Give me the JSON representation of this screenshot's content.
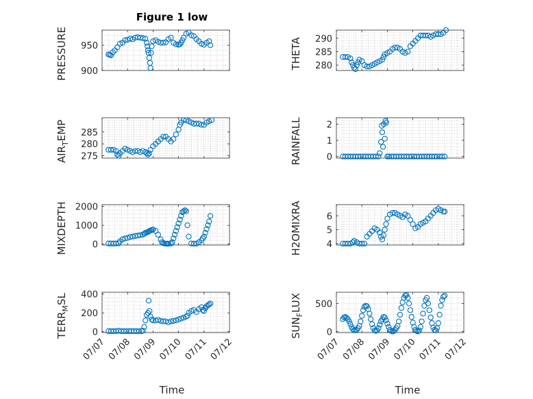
{
  "figure": {
    "title": "Figure 1 low",
    "xlabel": "Time",
    "x_ticks": [
      "07/07",
      "07/08",
      "07/09",
      "07/10",
      "07/11",
      "07/12"
    ],
    "marker_color": "#0072bd",
    "marker": "circle"
  },
  "chart_data": [
    {
      "type": "scatter",
      "ylabel": "PRESSURE",
      "title": "Figure 1 low",
      "xlim": [
        "07/07",
        "07/12"
      ],
      "ylim": [
        900,
        980
      ],
      "yticks": [
        900,
        950
      ],
      "grid": true,
      "x": [
        7.25,
        7.3,
        7.35,
        7.42,
        7.5,
        7.6,
        7.7,
        7.8,
        7.9,
        8.0,
        8.1,
        8.2,
        8.3,
        8.4,
        8.5,
        8.6,
        8.7,
        8.75,
        8.78,
        8.8,
        8.82,
        8.85,
        8.88,
        8.9,
        8.92,
        8.95,
        9.0,
        9.1,
        9.2,
        9.3,
        9.4,
        9.5,
        9.6,
        9.7,
        9.8,
        9.9,
        10.0,
        10.05,
        10.1,
        10.15,
        10.2,
        10.3,
        10.4,
        10.5,
        10.6,
        10.7,
        10.8,
        10.9,
        11.0,
        11.1,
        11.2,
        11.25
      ],
      "y": [
        932,
        931,
        930,
        936,
        940,
        946,
        953,
        955,
        960,
        961,
        963,
        962,
        965,
        966,
        965,
        964,
        963,
        955,
        948,
        940,
        935,
        925,
        915,
        905,
        935,
        948,
        958,
        960,
        957,
        955,
        955,
        956,
        962,
        965,
        955,
        952,
        951,
        952,
        955,
        960,
        965,
        973,
        975,
        970,
        968,
        962,
        958,
        953,
        951,
        955,
        958,
        950
      ]
    },
    {
      "type": "scatter",
      "ylabel": "THETA",
      "xlim": [
        "07/07",
        "07/12"
      ],
      "ylim": [
        278,
        293
      ],
      "yticks": [
        280,
        285,
        290
      ],
      "grid": true,
      "x": [
        7.25,
        7.35,
        7.45,
        7.55,
        7.6,
        7.65,
        7.7,
        7.75,
        7.8,
        7.85,
        7.9,
        8.0,
        8.1,
        8.2,
        8.3,
        8.4,
        8.5,
        8.6,
        8.7,
        8.8,
        8.85,
        8.9,
        9.0,
        9.1,
        9.2,
        9.3,
        9.4,
        9.5,
        9.6,
        9.7,
        9.8,
        9.9,
        10.0,
        10.1,
        10.2,
        10.3,
        10.4,
        10.5,
        10.6,
        10.7,
        10.8,
        10.9,
        11.0,
        11.1,
        11.2,
        11.3
      ],
      "y": [
        283,
        283,
        283,
        282.5,
        281,
        280,
        279,
        278.5,
        280,
        281,
        282,
        281.5,
        280,
        279.5,
        279.5,
        280,
        280.5,
        281,
        281.5,
        282,
        283,
        284,
        284.5,
        285,
        286,
        286.5,
        286.5,
        286,
        285,
        284.5,
        285,
        287,
        288,
        289,
        290,
        291,
        291,
        291,
        291,
        290.5,
        291,
        291.5,
        291.5,
        291.5,
        292,
        293
      ]
    },
    {
      "type": "scatter",
      "ylabel": "AIR_TEMP",
      "xlim": [
        "07/07",
        "07/12"
      ],
      "ylim": [
        274,
        291
      ],
      "yticks": [
        275,
        280,
        285
      ],
      "grid": true,
      "x": [
        7.25,
        7.35,
        7.45,
        7.55,
        7.6,
        7.65,
        7.7,
        7.8,
        7.9,
        8.0,
        8.1,
        8.2,
        8.3,
        8.4,
        8.5,
        8.6,
        8.7,
        8.75,
        8.8,
        8.85,
        8.9,
        9.0,
        9.1,
        9.2,
        9.3,
        9.4,
        9.5,
        9.6,
        9.7,
        9.8,
        9.9,
        10.0,
        10.05,
        10.1,
        10.2,
        10.3,
        10.4,
        10.5,
        10.6,
        10.7,
        10.8,
        10.9,
        11.0,
        11.1,
        11.2,
        11.3
      ],
      "y": [
        277.5,
        277.5,
        277.5,
        277,
        275.5,
        275,
        276,
        277,
        278,
        277.5,
        277,
        276.5,
        277,
        277,
        276.5,
        277,
        276.5,
        276,
        275.5,
        276,
        277.5,
        279,
        280,
        281,
        282,
        283,
        283,
        282,
        281,
        282,
        284,
        286,
        288,
        289,
        290,
        290,
        289.5,
        289,
        288.5,
        288.5,
        288.5,
        288,
        288,
        289,
        289.5,
        290
      ]
    },
    {
      "type": "scatter",
      "ylabel": "RAINFALL",
      "xlim": [
        "07/07",
        "07/12"
      ],
      "ylim": [
        -0.1,
        2.4
      ],
      "yticks": [
        0,
        1,
        2
      ],
      "grid": true,
      "x": [
        7.25,
        7.35,
        7.45,
        7.55,
        7.65,
        7.75,
        7.85,
        7.95,
        8.05,
        8.15,
        8.25,
        8.35,
        8.45,
        8.55,
        8.65,
        8.7,
        8.75,
        8.78,
        8.8,
        8.83,
        8.86,
        8.9,
        8.93,
        8.96,
        9.0,
        9.05,
        9.15,
        9.25,
        9.35,
        9.45,
        9.55,
        9.65,
        9.75,
        9.85,
        9.95,
        10.05,
        10.15,
        10.25,
        10.35,
        10.45,
        10.55,
        10.65,
        10.75,
        10.85,
        10.95,
        11.05,
        11.15,
        11.25
      ],
      "y": [
        0,
        0,
        0,
        0,
        0,
        0,
        0,
        0,
        0,
        0,
        0,
        0,
        0,
        0,
        0,
        0.2,
        0.9,
        1.9,
        1.5,
        0.6,
        2.0,
        1.1,
        2.2,
        2.1,
        0,
        0,
        0,
        0,
        0,
        0,
        0,
        0,
        0,
        0,
        0,
        0,
        0,
        0,
        0,
        0,
        0,
        0,
        0,
        0,
        0,
        0,
        0,
        0
      ]
    },
    {
      "type": "scatter",
      "ylabel": "MIXDEPTH",
      "xlim": [
        "07/07",
        "07/12"
      ],
      "ylim": [
        -50,
        2100
      ],
      "yticks": [
        0,
        1000,
        2000
      ],
      "grid": true,
      "x": [
        7.25,
        7.35,
        7.45,
        7.55,
        7.65,
        7.7,
        7.8,
        7.9,
        8.0,
        8.1,
        8.2,
        8.3,
        8.4,
        8.5,
        8.6,
        8.65,
        8.7,
        8.75,
        8.8,
        8.83,
        8.86,
        8.9,
        8.95,
        9.0,
        9.1,
        9.2,
        9.3,
        9.35,
        9.4,
        9.45,
        9.5,
        9.55,
        9.6,
        9.7,
        9.75,
        9.8,
        9.85,
        9.9,
        9.95,
        10.0,
        10.05,
        10.1,
        10.15,
        10.2,
        10.25,
        10.3,
        10.35,
        10.4,
        10.5,
        10.6,
        10.7,
        10.8,
        10.9,
        10.95,
        11.0,
        11.05,
        11.1,
        11.15,
        11.2,
        11.25
      ],
      "y": [
        30,
        30,
        30,
        30,
        40,
        150,
        250,
        300,
        330,
        380,
        400,
        430,
        450,
        480,
        500,
        550,
        600,
        620,
        640,
        670,
        700,
        720,
        750,
        780,
        700,
        500,
        250,
        100,
        50,
        30,
        20,
        20,
        20,
        30,
        100,
        300,
        500,
        700,
        900,
        1100,
        1300,
        1500,
        1700,
        1750,
        1800,
        1750,
        1000,
        400,
        30,
        20,
        20,
        100,
        200,
        300,
        400,
        600,
        800,
        1000,
        1200,
        1500
      ]
    },
    {
      "type": "scatter",
      "ylabel": "H2OMIXRA",
      "xlim": [
        "07/07",
        "07/12"
      ],
      "ylim": [
        3.9,
        6.8
      ],
      "yticks": [
        4,
        5,
        6
      ],
      "grid": true,
      "x": [
        7.25,
        7.35,
        7.45,
        7.55,
        7.65,
        7.7,
        7.8,
        7.9,
        8.0,
        8.1,
        8.2,
        8.3,
        8.4,
        8.5,
        8.6,
        8.7,
        8.75,
        8.8,
        8.85,
        8.9,
        8.95,
        9.0,
        9.1,
        9.2,
        9.3,
        9.4,
        9.5,
        9.6,
        9.7,
        9.8,
        9.9,
        10.0,
        10.1,
        10.2,
        10.3,
        10.4,
        10.5,
        10.6,
        10.7,
        10.8,
        10.9,
        11.0,
        11.1,
        11.2,
        11.25
      ],
      "y": [
        4.0,
        4.0,
        4.0,
        4.0,
        4.1,
        4.2,
        4.1,
        4.0,
        4.0,
        4.0,
        4.5,
        4.7,
        4.9,
        5.1,
        5.0,
        4.8,
        4.5,
        4.3,
        4.6,
        5.0,
        5.4,
        5.8,
        6.1,
        6.2,
        6.2,
        6.1,
        6.0,
        5.9,
        6.1,
        6.0,
        5.7,
        5.4,
        5.1,
        5.2,
        5.4,
        5.5,
        5.6,
        5.8,
        6.0,
        6.2,
        6.4,
        6.5,
        6.4,
        6.3,
        6.3
      ]
    },
    {
      "type": "scatter",
      "ylabel": "TERR_MSL",
      "xlim": [
        "07/07",
        "07/12"
      ],
      "ylim": [
        -10,
        420
      ],
      "yticks": [
        0,
        200,
        400
      ],
      "grid": true,
      "x": [
        7.25,
        7.35,
        7.45,
        7.55,
        7.65,
        7.75,
        7.85,
        7.95,
        8.05,
        8.15,
        8.25,
        8.35,
        8.45,
        8.55,
        8.6,
        8.65,
        8.7,
        8.75,
        8.8,
        8.83,
        8.86,
        8.9,
        8.95,
        9.0,
        9.1,
        9.2,
        9.3,
        9.4,
        9.5,
        9.6,
        9.7,
        9.8,
        9.9,
        10.0,
        10.1,
        10.2,
        10.3,
        10.35,
        10.4,
        10.5,
        10.6,
        10.7,
        10.8,
        10.9,
        10.95,
        11.0,
        11.05,
        11.1,
        11.15,
        11.2,
        11.25
      ],
      "y": [
        5,
        5,
        5,
        5,
        10,
        5,
        5,
        5,
        5,
        5,
        5,
        5,
        5,
        5,
        10,
        50,
        120,
        180,
        200,
        330,
        220,
        160,
        130,
        120,
        120,
        125,
        115,
        110,
        110,
        100,
        110,
        115,
        120,
        130,
        140,
        150,
        160,
        170,
        200,
        220,
        230,
        210,
        240,
        260,
        230,
        220,
        250,
        270,
        280,
        290,
        300
      ]
    },
    {
      "type": "scatter",
      "ylabel": "SUN_FLUX",
      "xlim": [
        "07/07",
        "07/12"
      ],
      "ylim": [
        -20,
        700
      ],
      "yticks": [
        0,
        500
      ],
      "grid": true,
      "x": [
        7.25,
        7.3,
        7.35,
        7.4,
        7.45,
        7.5,
        7.55,
        7.6,
        7.65,
        7.7,
        7.75,
        7.8,
        7.85,
        7.9,
        7.95,
        8.0,
        8.05,
        8.1,
        8.15,
        8.2,
        8.25,
        8.3,
        8.35,
        8.4,
        8.45,
        8.5,
        8.55,
        8.6,
        8.65,
        8.7,
        8.75,
        8.8,
        8.85,
        8.9,
        8.95,
        9.0,
        9.05,
        9.1,
        9.15,
        9.2,
        9.25,
        9.3,
        9.35,
        9.4,
        9.45,
        9.5,
        9.55,
        9.6,
        9.65,
        9.7,
        9.75,
        9.8,
        9.85,
        9.9,
        9.95,
        10.0,
        10.05,
        10.1,
        10.15,
        10.2,
        10.25,
        10.3,
        10.35,
        10.4,
        10.45,
        10.5,
        10.55,
        10.6,
        10.65,
        10.7,
        10.75,
        10.8,
        10.85,
        10.9,
        10.95,
        11.0,
        11.05,
        11.1,
        11.15,
        11.2,
        11.25
      ],
      "y": [
        220,
        250,
        260,
        240,
        220,
        180,
        130,
        80,
        40,
        20,
        20,
        30,
        60,
        100,
        180,
        280,
        380,
        440,
        460,
        450,
        400,
        320,
        220,
        130,
        60,
        20,
        10,
        20,
        60,
        120,
        180,
        220,
        260,
        250,
        200,
        140,
        80,
        30,
        10,
        0,
        10,
        30,
        60,
        100,
        180,
        300,
        420,
        520,
        600,
        640,
        650,
        600,
        500,
        380,
        260,
        160,
        80,
        30,
        10,
        0,
        20,
        80,
        180,
        320,
        460,
        560,
        600,
        500,
        380,
        250,
        150,
        70,
        30,
        20,
        60,
        150,
        300,
        460,
        560,
        620,
        640
      ]
    }
  ]
}
